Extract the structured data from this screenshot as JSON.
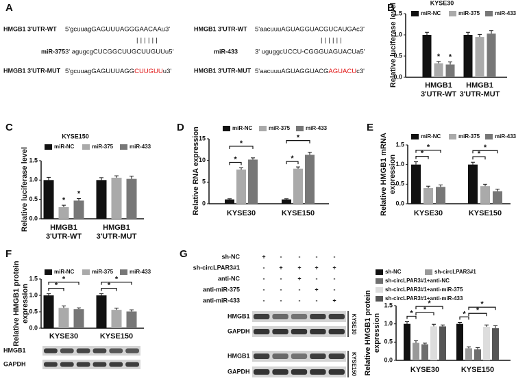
{
  "panel_labels": [
    "A",
    "B",
    "C",
    "D",
    "E",
    "F",
    "G"
  ],
  "sequences": [
    {
      "wt_label": "HMGB1 3'UTR-WT",
      "wt": "5'gcuuagGAGUUUAGGGAACAAu3'",
      "pairing": "||||||",
      "mirna_label": "miR-375",
      "mirna": "3' agugcgCUCGGCUUGCUUGUUu5'",
      "mut_label": "HMGB1 3'UTR-MUT",
      "mut": [
        "5'gcuuagGAGUUUAGG",
        "CUUGUU",
        "u3'"
      ]
    },
    {
      "wt_label": "HMGB1 3'UTR-WT",
      "wt": "5'aacuuuAGUAGGUACGUCAUGAc3'",
      "pairing": "||||||",
      "mirna_label": "miR-433",
      "mirna": "3' uguggcUCCU-CGGGUAGUACUa5'",
      "mut_label": "HMGB1 3'UTR-MUT",
      "mut": [
        "5'aacuuuAGUAGGUACG",
        "AGUACU",
        "c3'"
      ]
    }
  ],
  "treatments": [
    {
      "label": "sh-NC",
      "signs": [
        "+",
        "-",
        "-",
        "-",
        "-"
      ]
    },
    {
      "label": "sh-circLPAR3#1",
      "signs": [
        "-",
        "+",
        "+",
        "+",
        "+"
      ]
    },
    {
      "label": "anti-NC",
      "signs": [
        "-",
        "-",
        "+",
        "-",
        "-"
      ]
    },
    {
      "label": "anti-miR-375",
      "signs": [
        "-",
        "-",
        "-",
        "+",
        "-"
      ]
    },
    {
      "label": "anti-miR-433",
      "signs": [
        "-",
        "-",
        "-",
        "-",
        "+"
      ]
    }
  ],
  "blot_labels": {
    "F": [
      "HMGB1",
      "GAPDH"
    ],
    "G": [
      "HMGB1",
      "GAPDH",
      "HMGB1",
      "GAPDH"
    ],
    "G_cell_lines": [
      "KYSE30",
      "KYSE150"
    ]
  },
  "chart_data": [
    {
      "type": "bar",
      "title": "KYSE30",
      "ylabel": "Relative luciferase level",
      "categories": [
        "HMGB1\n3'UTR-WT",
        "HMGB1\n3'UTR-MUT"
      ],
      "series": [
        {
          "name": "miR-NC",
          "color": "#111111",
          "values": [
            1.0,
            1.0
          ],
          "errors": [
            0.06,
            0.06
          ]
        },
        {
          "name": "miR-375",
          "color": "#aaaaaa",
          "values": [
            0.33,
            0.95
          ],
          "errors": [
            0.04,
            0.06
          ]
        },
        {
          "name": "miR-433",
          "color": "#777777",
          "values": [
            0.3,
            1.03
          ],
          "errors": [
            0.06,
            0.07
          ]
        }
      ],
      "ylim": [
        0,
        1.5
      ],
      "yticks": [
        {
          "value": 0,
          "label": "0.0"
        },
        {
          "value": 0.5,
          "label": "0.5"
        },
        {
          "value": 1,
          "label": "1.0"
        },
        {
          "value": 1.5,
          "label": "1.5"
        }
      ],
      "significance": [
        {
          "label": "*",
          "category": "HMGB1\n3'UTR-WT",
          "series": "miR-375"
        },
        {
          "label": "*",
          "category": "HMGB1\n3'UTR-WT",
          "series": "miR-433"
        }
      ]
    },
    {
      "type": "bar",
      "title": "KYSE150",
      "ylabel": "Relative luciferase level",
      "categories": [
        "HMGB1\n3'UTR-WT",
        "HMGB1\n3'UTR-MUT"
      ],
      "series": [
        {
          "name": "miR-NC",
          "color": "#111111",
          "values": [
            1.0,
            1.0
          ],
          "errors": [
            0.07,
            0.06
          ]
        },
        {
          "name": "miR-375",
          "color": "#aaaaaa",
          "values": [
            0.3,
            1.06
          ],
          "errors": [
            0.05,
            0.05
          ]
        },
        {
          "name": "miR-433",
          "color": "#777777",
          "values": [
            0.47,
            1.03
          ],
          "errors": [
            0.05,
            0.07
          ]
        }
      ],
      "ylim": [
        0,
        1.5
      ],
      "yticks": [
        {
          "value": 0,
          "label": "0.0"
        },
        {
          "value": 0.5,
          "label": "0.5"
        },
        {
          "value": 1,
          "label": "1.0"
        },
        {
          "value": 1.5,
          "label": "1.5"
        }
      ],
      "significance": [
        {
          "label": "*",
          "category": "HMGB1\n3'UTR-WT",
          "series": "miR-375"
        },
        {
          "label": "*",
          "category": "HMGB1\n3'UTR-WT",
          "series": "miR-433"
        }
      ]
    },
    {
      "type": "bar",
      "ylabel": "Relative RNA expression",
      "categories": [
        "KYSE30",
        "KYSE150"
      ],
      "series": [
        {
          "name": "miR-NC",
          "color": "#111111",
          "values": [
            1,
            1
          ],
          "errors": [
            0.15,
            0.15
          ]
        },
        {
          "name": "miR-375",
          "color": "#aaaaaa",
          "values": [
            7.9,
            8.1
          ],
          "errors": [
            0.4,
            0.4
          ]
        },
        {
          "name": "miR-433",
          "color": "#777777",
          "values": [
            10.2,
            11.3
          ],
          "errors": [
            0.4,
            0.6
          ]
        }
      ],
      "ylim": [
        0,
        15
      ],
      "yticks": [
        0,
        5,
        10,
        15
      ],
      "significance": [
        {
          "label": "*",
          "category": "KYSE30",
          "from": "miR-NC",
          "to": "miR-375"
        },
        {
          "label": "*",
          "category": "KYSE30",
          "from": "miR-NC",
          "to": "miR-433"
        },
        {
          "label": "*",
          "category": "KYSE150",
          "from": "miR-NC",
          "to": "miR-375"
        },
        {
          "label": "*",
          "category": "KYSE150",
          "from": "miR-NC",
          "to": "miR-433"
        }
      ]
    },
    {
      "type": "bar",
      "ylabel": "Relative HMGB1 mRNA\nexpression",
      "categories": [
        "KYSE30",
        "KYSE150"
      ],
      "series": [
        {
          "name": "miR-NC",
          "color": "#111111",
          "values": [
            1.0,
            1.0
          ],
          "errors": [
            0.07,
            0.06
          ]
        },
        {
          "name": "miR-375",
          "color": "#aaaaaa",
          "values": [
            0.4,
            0.45
          ],
          "errors": [
            0.05,
            0.05
          ]
        },
        {
          "name": "miR-433",
          "color": "#777777",
          "values": [
            0.43,
            0.32
          ],
          "errors": [
            0.05,
            0.05
          ]
        }
      ],
      "ylim": [
        0,
        1.5
      ],
      "yticks": [
        {
          "value": 0,
          "label": "0.0"
        },
        {
          "value": 0.5,
          "label": "0.5"
        },
        {
          "value": 1,
          "label": "1.0"
        },
        {
          "value": 1.5,
          "label": "1.5"
        }
      ],
      "significance": [
        {
          "label": "*",
          "category": "KYSE30",
          "from": "miR-NC",
          "to": "miR-375"
        },
        {
          "label": "*",
          "category": "KYSE30",
          "from": "miR-NC",
          "to": "miR-433"
        },
        {
          "label": "*",
          "category": "KYSE150",
          "from": "miR-NC",
          "to": "miR-375"
        },
        {
          "label": "*",
          "category": "KYSE150",
          "from": "miR-NC",
          "to": "miR-433"
        }
      ]
    },
    {
      "type": "bar",
      "ylabel": "Relative HMGB1 protein\nexpression",
      "categories": [
        "KYSE30",
        "KYSE150"
      ],
      "series": [
        {
          "name": "miR-NC",
          "color": "#111111",
          "values": [
            1.0,
            1.0
          ],
          "errors": [
            0.05,
            0.05
          ]
        },
        {
          "name": "miR-375",
          "color": "#aaaaaa",
          "values": [
            0.62,
            0.56
          ],
          "errors": [
            0.06,
            0.05
          ]
        },
        {
          "name": "miR-433",
          "color": "#777777",
          "values": [
            0.58,
            0.51
          ],
          "errors": [
            0.04,
            0.05
          ]
        }
      ],
      "ylim": [
        0,
        1.5
      ],
      "yticks": [
        {
          "value": 0,
          "label": "0.0"
        },
        {
          "value": 0.5,
          "label": "0.5"
        },
        {
          "value": 1,
          "label": "1.0"
        },
        {
          "value": 1.5,
          "label": "1.5"
        }
      ],
      "significance": [
        {
          "label": "*",
          "category": "KYSE30",
          "from": "miR-NC",
          "to": "miR-375"
        },
        {
          "label": "*",
          "category": "KYSE30",
          "from": "miR-NC",
          "to": "miR-433"
        },
        {
          "label": "*",
          "category": "KYSE150",
          "from": "miR-NC",
          "to": "miR-375"
        },
        {
          "label": "*",
          "category": "KYSE150",
          "from": "miR-NC",
          "to": "miR-433"
        }
      ]
    },
    {
      "type": "bar",
      "ylabel": "Relative HMGB1 protein\nexpression",
      "categories": [
        "KYSE30",
        "KYSE150"
      ],
      "series": [
        {
          "name": "sh-NC",
          "color": "#111111",
          "values": [
            1.0,
            1.0
          ],
          "errors": [
            0.06,
            0.04
          ]
        },
        {
          "name": "sh-circLPAR3#1",
          "color": "#999999",
          "values": [
            0.48,
            0.33
          ],
          "errors": [
            0.06,
            0.04
          ]
        },
        {
          "name": "sh-circLPAR3#1+anti-NC",
          "color": "#6e6e6e",
          "values": [
            0.44,
            0.3
          ],
          "errors": [
            0.03,
            0.05
          ]
        },
        {
          "name": "sh-circLPAR3#1+anti-miR-375",
          "color": "#dddddd",
          "values": [
            0.93,
            0.92
          ],
          "errors": [
            0.06,
            0.05
          ]
        },
        {
          "name": "sh-circLPAR3#1+anti-miR-433",
          "color": "#555555",
          "values": [
            0.93,
            0.88
          ],
          "errors": [
            0.04,
            0.07
          ]
        }
      ],
      "ylim": [
        0,
        1.5
      ],
      "yticks": [
        {
          "value": 0,
          "label": "0.0"
        },
        {
          "value": 0.5,
          "label": "0.5"
        },
        {
          "value": 1,
          "label": "1.0"
        },
        {
          "value": 1.5,
          "label": "1.5"
        }
      ],
      "significance": [
        {
          "label": "*",
          "category": "KYSE30",
          "from": "sh-NC",
          "to": "sh-circLPAR3#1"
        },
        {
          "label": "*",
          "category": "KYSE30",
          "from": "sh-circLPAR3#1",
          "to": "sh-circLPAR3#1+anti-miR-375"
        },
        {
          "label": "*",
          "category": "KYSE30",
          "from": "sh-circLPAR3#1",
          "to": "sh-circLPAR3#1+anti-miR-433"
        },
        {
          "label": "*",
          "category": "KYSE150",
          "from": "sh-NC",
          "to": "sh-circLPAR3#1"
        },
        {
          "label": "*",
          "category": "KYSE150",
          "from": "sh-circLPAR3#1",
          "to": "sh-circLPAR3#1+anti-miR-375"
        },
        {
          "label": "*",
          "category": "KYSE150",
          "from": "sh-circLPAR3#1",
          "to": "sh-circLPAR3#1+anti-miR-433"
        }
      ]
    }
  ]
}
